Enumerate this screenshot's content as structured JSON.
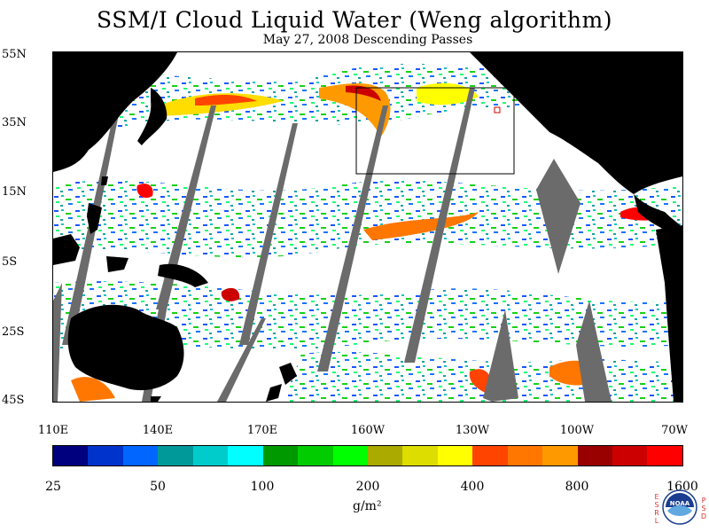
{
  "header": {
    "title": "SSM/I Cloud Liquid Water (Weng algorithm)",
    "subtitle": "May 27, 2008  Descending Passes"
  },
  "map": {
    "lat_labels": [
      "55N",
      "35N",
      "15N",
      "5S",
      "25S",
      "45S"
    ],
    "lon_labels": [
      "110E",
      "140E",
      "170E",
      "160W",
      "130W",
      "100W",
      "70W"
    ],
    "colors": {
      "land": "#000000",
      "no_data_swath_gap": "#6b6b6b",
      "clear": "#ffffff",
      "box_outline": "#000000"
    }
  },
  "legend": {
    "tick_labels": [
      "25",
      "50",
      "100",
      "200",
      "400",
      "800",
      "1600"
    ],
    "units": "g/m²",
    "colors": [
      "#00007f",
      "#0033cc",
      "#0066ff",
      "#009999",
      "#00cccc",
      "#00ffff",
      "#009900",
      "#00cc00",
      "#00ff00",
      "#aaaa00",
      "#dddd00",
      "#ffff00",
      "#ff4400",
      "#ff7700",
      "#ff9900",
      "#990000",
      "#cc0000",
      "#ff0000"
    ]
  },
  "logo": {
    "left_letters": "ESRL",
    "right_letters": "PSD",
    "text": "NOAA"
  }
}
